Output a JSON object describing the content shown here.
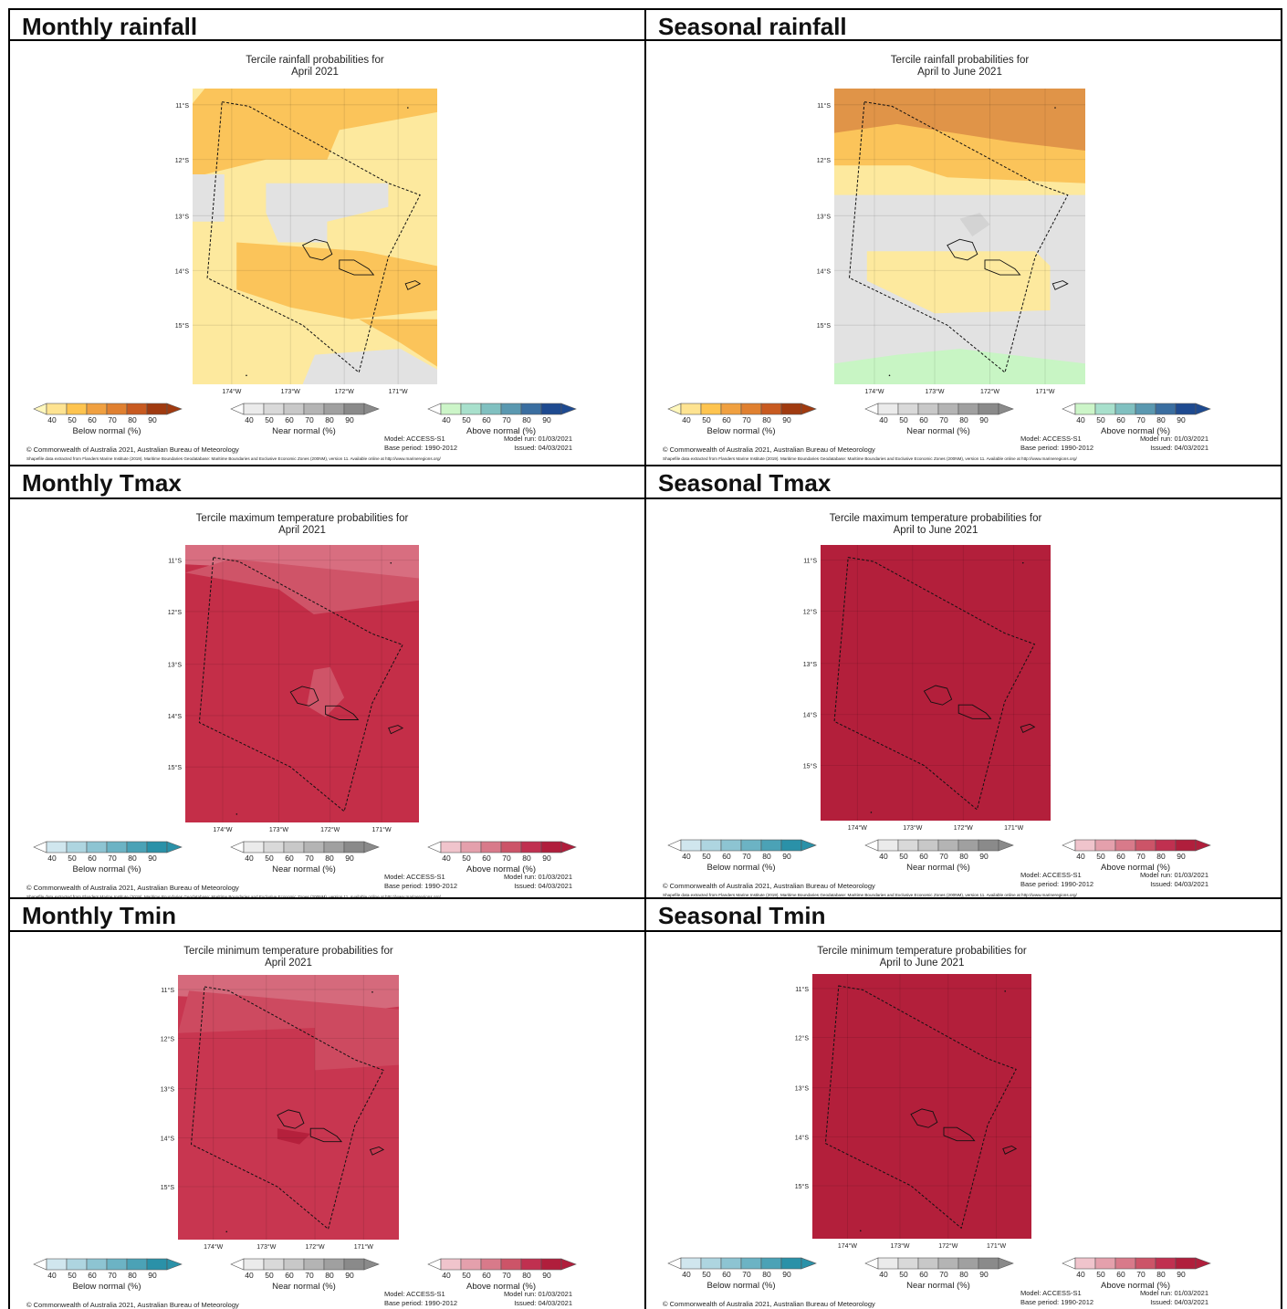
{
  "headers": {
    "monthly_rainfall": "Monthly rainfall",
    "seasonal_rainfall": "Seasonal rainfall",
    "monthly_tmax": "Monthly Tmax",
    "seasonal_tmax": "Seasonal Tmax",
    "monthly_tmin": "Monthly Tmin",
    "seasonal_tmin": "Seasonal Tmin"
  },
  "titles": {
    "rain": "Tercile rainfall probabilities for",
    "tmax": "Tercile maximum temperature probabilities for",
    "tmin": "Tercile minimum temperature probabilities for",
    "month": "April 2021",
    "season": "April to June 2021"
  },
  "axes": {
    "lat_labels": [
      "11°S",
      "12°S",
      "13°S",
      "14°S",
      "15°S"
    ],
    "lon_labels": [
      "174°W",
      "173°W",
      "172°W",
      "171°W"
    ]
  },
  "legends": {
    "ticks": [
      "40",
      "50",
      "60",
      "70",
      "80",
      "90"
    ],
    "below": "Below normal (%)",
    "near": "Near normal (%)",
    "above": "Above normal (%)",
    "rain_below_colors": [
      "#fff7bc",
      "#fee391",
      "#fec44f",
      "#f0a040",
      "#e08030",
      "#c85a20",
      "#a03a10"
    ],
    "rain_near_colors": [
      "#ffffff",
      "#ebebeb",
      "#d9d9d9",
      "#c8c8c8",
      "#b4b4b4",
      "#a0a0a0",
      "#8a8a8a"
    ],
    "rain_above_colors": [
      "#ffffff",
      "#ccf5c8",
      "#a8e0cc",
      "#80c0c0",
      "#5a98b0",
      "#3a6ea0",
      "#1e4a90"
    ],
    "temp_below_colors": [
      "#ffffff",
      "#d0e6ee",
      "#aed5e0",
      "#8dc4d2",
      "#6cb3c4",
      "#4ba2b6",
      "#2a91a8"
    ],
    "temp_near_colors": [
      "#ffffff",
      "#ebebeb",
      "#d9d9d9",
      "#c8c8c8",
      "#b4b4b4",
      "#a0a0a0",
      "#8a8a8a"
    ],
    "temp_above_colors": [
      "#ffffff",
      "#f0c4cc",
      "#e4a0ac",
      "#d87a8a",
      "#cc5468",
      "#c03050",
      "#b01e3c"
    ]
  },
  "footer": {
    "model": "Model: ACCESS-S1",
    "base_period": "Base period: 1990-2012",
    "model_run": "Model run: 01/03/2021",
    "issued": "Issued: 04/03/2021",
    "copyright": "© Commonwealth of Australia 2021, Australian Bureau of Meteorology",
    "shapefile": "Shapefile data extracted from Flanders Marine Institute (2019). Maritime Boundaries Geodatabase: Maritime Boundaries and Exclusive Economic Zones (200NM), version 11. Available online at http://www.marineregions.org/"
  },
  "map_colors": {
    "rain_light": "#fde99e",
    "rain_mid": "#fbc45a",
    "rain_dark": "#e09448",
    "near_grey": "#e2e2e2",
    "near_grey_dark": "#d3d3d3",
    "above_green": "#c8f5c4",
    "tmax_main": "#c42e48",
    "tmax_light": "#cf5468",
    "tmax_lighter": "#d86e80",
    "temp_solid": "#b31f3b",
    "tmin_main": "#c83650",
    "tmin_light": "#d56a7c"
  }
}
